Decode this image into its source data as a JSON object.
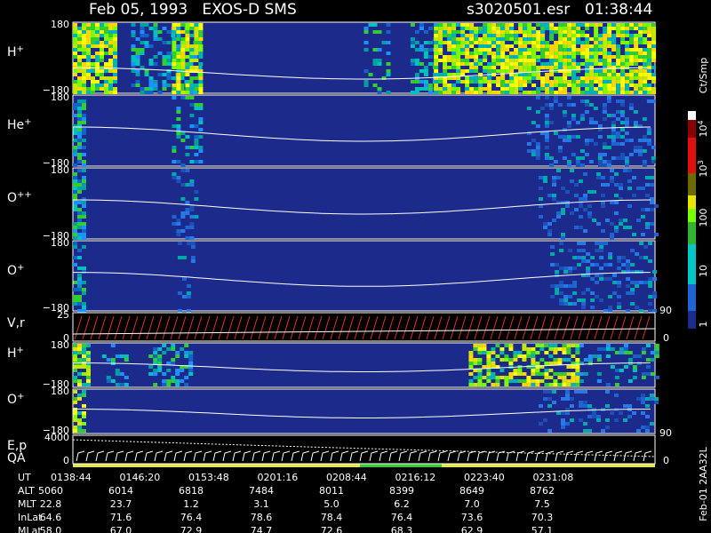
{
  "header": {
    "title": "Feb 05, 1993   EXOS-D SMS",
    "file": "s3020501.esr",
    "time": "01:38:44"
  },
  "panels": [
    {
      "ion": "H",
      "charge": "+",
      "top": "180",
      "bottom": "−180"
    },
    {
      "ion": "He",
      "charge": "+",
      "top": "180",
      "bottom": "−180"
    },
    {
      "ion": "O",
      "charge": "++",
      "top": "180",
      "bottom": "−180"
    },
    {
      "ion": "O",
      "charge": "+",
      "top": "180",
      "bottom": "−180"
    },
    {
      "ion": "V,r",
      "top": "25",
      "bottom": "0",
      "right_top": "90",
      "right_bottom": "0"
    },
    {
      "ion": "H",
      "charge": "+",
      "top": "180",
      "bottom": "−180"
    },
    {
      "ion": "O",
      "charge": "+",
      "top": "180",
      "bottom": "−180"
    },
    {
      "ion": "E,p",
      "sub": "QA",
      "top": "4000",
      "bottom": "0",
      "right_top": "90",
      "right_bottom": "0"
    }
  ],
  "colorbar": {
    "unit": "Ct/Smp",
    "labels": [
      {
        "base": "10",
        "exp": "4"
      },
      {
        "base": "10",
        "exp": "3"
      },
      {
        "base": "100"
      },
      {
        "base": "10"
      },
      {
        "base": "1"
      }
    ]
  },
  "table": {
    "row_labels": [
      "UT",
      "ALT",
      "MLT",
      "InLat",
      "MLat"
    ],
    "rows": [
      [
        "0138:44",
        "0146:20",
        "0153:48",
        "0201:16",
        "0208:44",
        "0216:12",
        "0223:40",
        "0231:08"
      ],
      [
        "5060",
        "6014",
        "6818",
        "7484",
        "8011",
        "8399",
        "8649",
        "8762"
      ],
      [
        "22.8",
        "23.7",
        "1.2",
        "3.1",
        "5.0",
        "6.2",
        "7.0",
        "7.5"
      ],
      [
        "64.6",
        "71.6",
        "76.4",
        "78.6",
        "78.4",
        "76.4",
        "73.6",
        "70.3"
      ],
      [
        "58.0",
        "67.0",
        "72.9",
        "74.7",
        "72.6",
        "68.3",
        "62.9",
        "57.1"
      ]
    ]
  },
  "footer": "Feb-01 2AA32L"
}
